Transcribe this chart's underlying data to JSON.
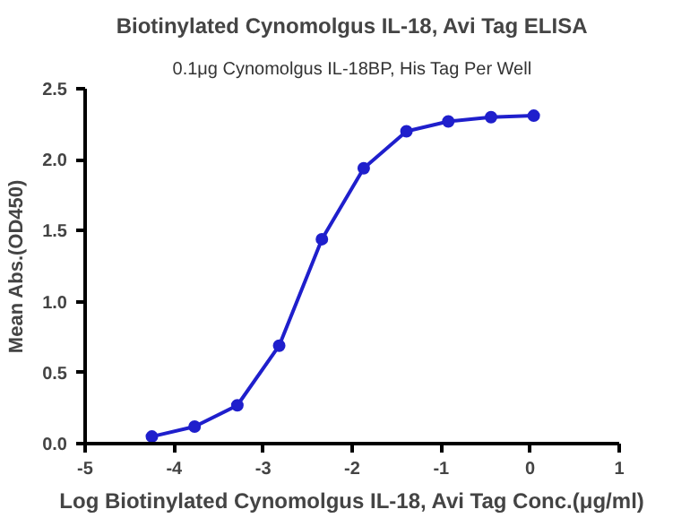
{
  "chart_data": {
    "type": "line",
    "title": "Biotinylated Cynomolgus IL-18, Avi Tag ELISA",
    "subtitle": "0.1μg Cynomolgus IL-18BP, His Tag Per Well",
    "xlabel": "Log Biotinylated Cynomolgus IL-18, Avi Tag Conc.(μg/ml)",
    "ylabel": "Mean Abs.(OD450)",
    "x": [
      -4.25,
      -3.77,
      -3.29,
      -2.82,
      -2.34,
      -1.87,
      -1.39,
      -0.92,
      -0.44,
      0.04
    ],
    "series": [
      {
        "color": "#1f1fcc",
        "values": [
          0.05,
          0.12,
          0.27,
          0.69,
          1.44,
          1.94,
          2.2,
          2.27,
          2.3,
          2.31
        ]
      }
    ],
    "xlim": [
      -5,
      1
    ],
    "xticks": [
      -5,
      -4,
      -3,
      -2,
      -1,
      0,
      1
    ],
    "ylim": [
      0,
      2.5
    ],
    "yticks": [
      {
        "value": 0,
        "label": "0.0"
      },
      {
        "value": 0.5,
        "label": "0.5"
      },
      {
        "value": 1,
        "label": "1.0"
      },
      {
        "value": 1.5,
        "label": "1.5"
      },
      {
        "value": 2,
        "label": "2.0"
      },
      {
        "value": 2.5,
        "label": "2.5"
      }
    ],
    "grid": false,
    "marker": "circle",
    "line_style": "solid"
  }
}
